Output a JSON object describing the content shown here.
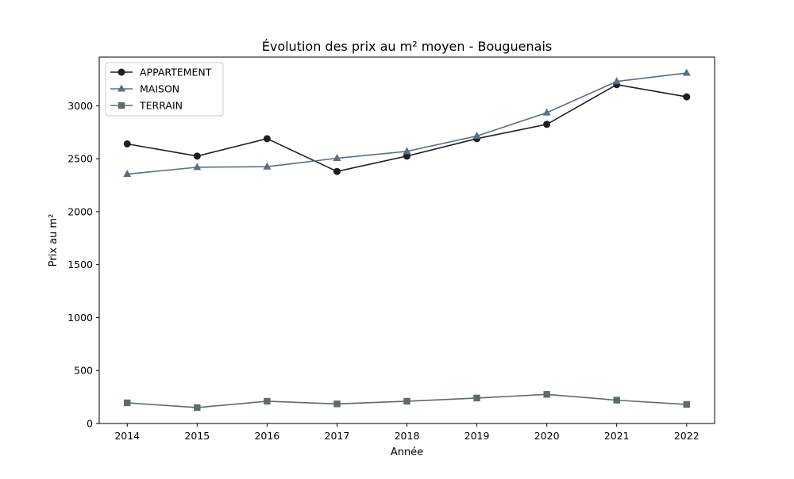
{
  "chart_data": {
    "type": "line",
    "title": "Évolution des prix au m² moyen - Bouguenais",
    "xlabel": "Année",
    "ylabel": "Prix au m²",
    "x": [
      2014,
      2015,
      2016,
      2017,
      2018,
      2019,
      2020,
      2021,
      2022
    ],
    "xlim": [
      2013.6,
      2022.4
    ],
    "ylim": [
      0,
      3460
    ],
    "yticks": [
      0,
      500,
      1000,
      1500,
      2000,
      2500,
      3000
    ],
    "grid": false,
    "legend_position": "top-left",
    "series": [
      {
        "name": "APPARTEMENT",
        "marker": "circle",
        "color": "#1f1f1f",
        "values": [
          2640,
          2525,
          2690,
          2380,
          2525,
          2690,
          2825,
          3200,
          3085
        ]
      },
      {
        "name": "MAISON",
        "marker": "triangle",
        "color": "#5a6e85",
        "values": [
          2355,
          2420,
          2425,
          2505,
          2570,
          2715,
          2935,
          3230,
          3310
        ]
      },
      {
        "name": "TERRAIN",
        "marker": "square",
        "color": "#5d6b6b",
        "values": [
          195,
          150,
          210,
          185,
          210,
          240,
          275,
          220,
          180
        ]
      }
    ]
  }
}
